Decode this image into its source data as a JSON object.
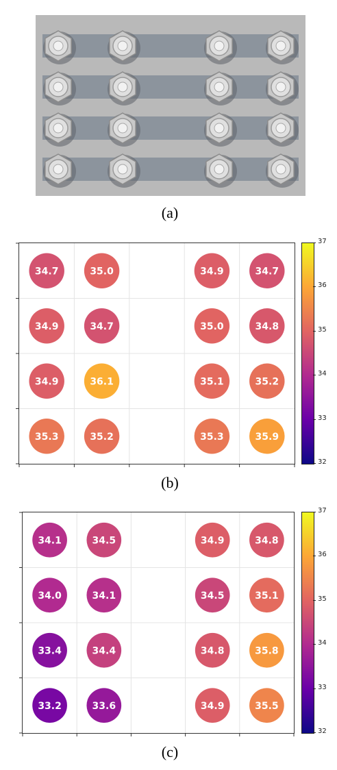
{
  "panel_a": {
    "caption": "(a)",
    "photo": {
      "plate_color": "#b9b9b9",
      "band_color": "#7d8894",
      "bolt_color": "#cfcfcf",
      "rows": 4,
      "bolts_per_row": 4
    }
  },
  "panel_b": {
    "caption": "(b)"
  },
  "panel_c": {
    "caption": "(c)"
  },
  "colormap": {
    "name": "plasma",
    "stops": [
      "#0d0887",
      "#6a00a8",
      "#b12a90",
      "#e16462",
      "#fca636",
      "#f0f921"
    ]
  },
  "chart_data": [
    {
      "type": "heatmap",
      "panel": "(b)",
      "grid": {
        "cols": 5,
        "rows": 4,
        "empty_column": 3
      },
      "values": [
        [
          34.7,
          35.0,
          null,
          34.9,
          34.7
        ],
        [
          34.9,
          34.7,
          null,
          35.0,
          34.8
        ],
        [
          34.9,
          36.1,
          null,
          35.1,
          35.2
        ],
        [
          35.3,
          35.2,
          null,
          35.3,
          35.9
        ]
      ],
      "colorbar": {
        "min": 32,
        "max": 37,
        "ticks": [
          32,
          33,
          34,
          35,
          36,
          37
        ]
      },
      "grid_lines": true
    },
    {
      "type": "heatmap",
      "panel": "(c)",
      "grid": {
        "cols": 5,
        "rows": 4,
        "empty_column": 3
      },
      "values": [
        [
          34.1,
          34.5,
          null,
          34.9,
          34.8
        ],
        [
          34.0,
          34.1,
          null,
          34.5,
          35.1
        ],
        [
          33.4,
          34.4,
          null,
          34.8,
          35.8
        ],
        [
          33.2,
          33.6,
          null,
          34.9,
          35.5
        ]
      ],
      "colorbar": {
        "min": 32,
        "max": 37,
        "ticks": [
          32,
          33,
          34,
          35,
          36,
          37
        ]
      },
      "grid_lines": true
    }
  ]
}
